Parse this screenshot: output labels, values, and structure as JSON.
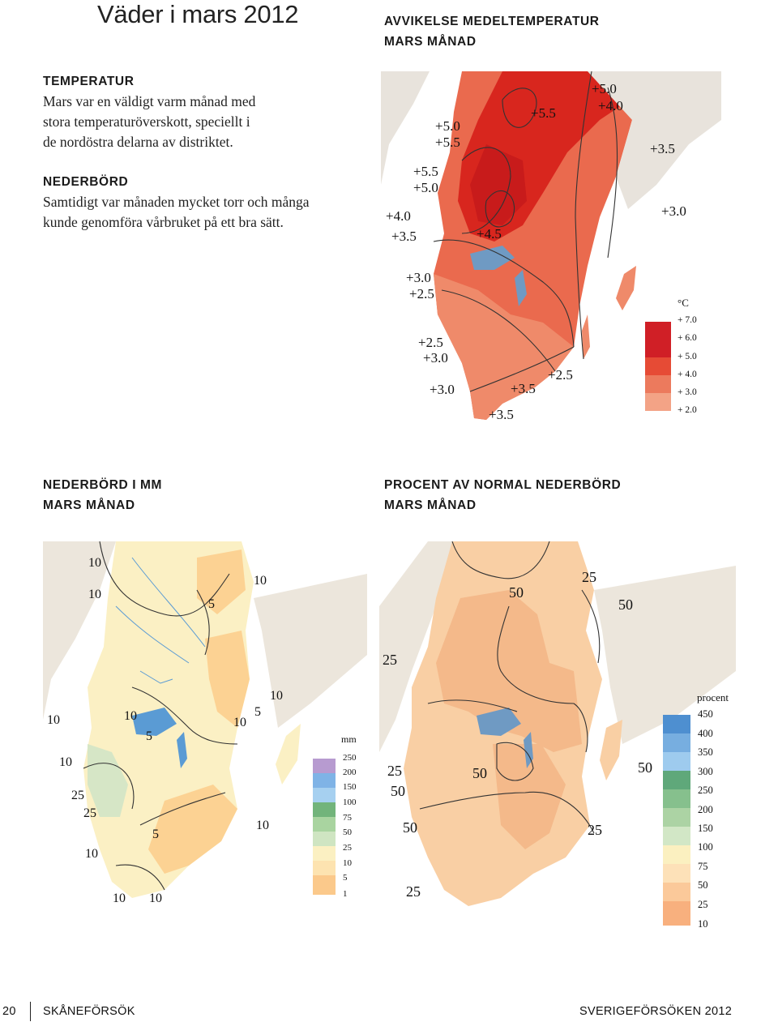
{
  "page": {
    "title": "Väder i mars 2012"
  },
  "text_block": {
    "temp_heading": "TEMPERATUR",
    "temp_lines": [
      "Mars var en väldigt varm månad med",
      "stora temperaturöverskott, speciellt i",
      "de nordöstra delarna av distriktet."
    ],
    "precip_heading": "NEDERBÖRD",
    "precip_lines": [
      "Samtidigt var månaden mycket torr och många",
      "kunde genomföra vårbruket på ett bra sätt."
    ]
  },
  "map_temp": {
    "caption_line1": "AVVIKELSE MEDELTEMPERATUR",
    "caption_line2": "MARS MÅNAD",
    "contour_labels": [
      "+5.0",
      "+4.0",
      "+5.5",
      "+5.0",
      "+5.5",
      "+3.5",
      "+5.5",
      "+5.0",
      "+4.0",
      "+3.0",
      "+3.5",
      "+4.5",
      "+3.0",
      "+2.5",
      "+2.5",
      "+3.0",
      "+2.5",
      "+3.0",
      "+3.5",
      "+3.5"
    ],
    "legend_unit": "°C",
    "legend_labels": [
      "+ 7.0",
      "+ 6.0",
      "+ 5.0",
      "+ 4.0",
      "+ 3.0",
      "+ 2.0"
    ],
    "legend_colors": [
      "#d01f26",
      "#e64b35",
      "#ec7a5d",
      "#f3a386"
    ]
  },
  "map_precip": {
    "caption_line1": "NEDERBÖRD I MM",
    "caption_line2": "MARS MÅNAD",
    "contour_labels": [
      "10",
      "10",
      "10",
      "5",
      "10",
      "5",
      "10",
      "10",
      "10",
      "5",
      "10",
      "25",
      "25",
      "5",
      "10",
      "10",
      "10",
      "10"
    ],
    "legend_unit": "mm",
    "legend_labels": [
      "250",
      "200",
      "150",
      "100",
      "75",
      "50",
      "25",
      "10",
      "5",
      "1"
    ],
    "legend_colors": [
      "#b79bd0",
      "#7fb3e6",
      "#a6d0f0",
      "#72b47b",
      "#a9d4a0",
      "#cfe5c2",
      "#fbf0c2",
      "#fde3b0",
      "#fbc98b"
    ]
  },
  "map_percent": {
    "caption_line1": "PROCENT AV NORMAL NEDERBÖRD",
    "caption_line2": "MARS MÅNAD",
    "contour_labels": [
      "25",
      "50",
      "50",
      "25",
      "25",
      "50",
      "50",
      "50",
      "50",
      "25",
      "25"
    ],
    "legend_unit": "procent",
    "legend_labels": [
      "450",
      "400",
      "350",
      "300",
      "250",
      "200",
      "150",
      "100",
      "75",
      "50",
      "25",
      "10"
    ],
    "legend_colors": [
      "#4e8fd0",
      "#77aee0",
      "#9ecbee",
      "#5fa87a",
      "#86c08d",
      "#acd3a4",
      "#d2e7c6",
      "#fbf0c0",
      "#fde1b8",
      "#fbc99a",
      "#f8b07e"
    ]
  },
  "footer": {
    "page_number": "20",
    "left_label": "SKÅNEFÖRSÖK",
    "right_label": "SVERIGEFÖRSÖKEN 2012"
  }
}
